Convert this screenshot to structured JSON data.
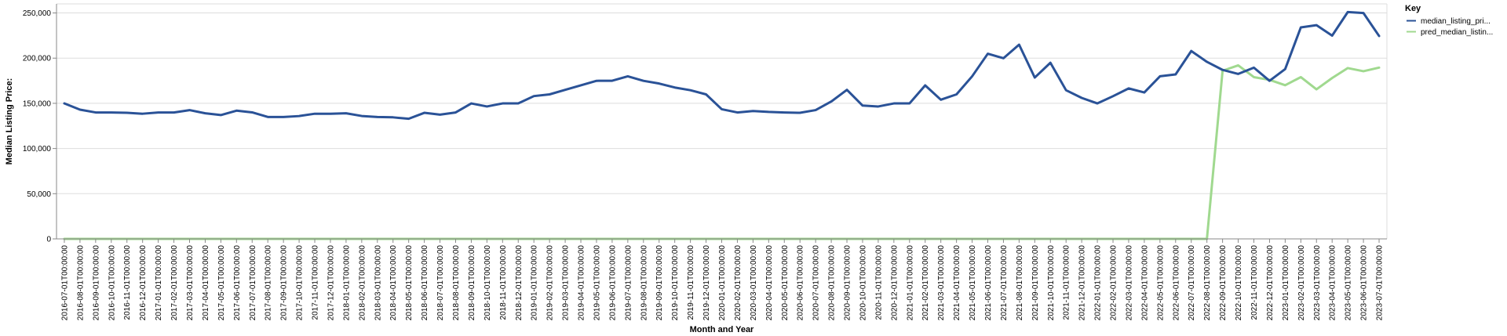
{
  "chart_data": {
    "type": "line",
    "xlabel": "Month and Year",
    "ylabel": "Median Listing Price:",
    "ylim": [
      0,
      260000
    ],
    "yticks": [
      0,
      50000,
      100000,
      150000,
      200000,
      250000
    ],
    "ytick_labels": [
      "0",
      "50,000",
      "100,000",
      "150,000",
      "200,000",
      "250,000"
    ],
    "grid": true,
    "legend": {
      "title": "Key",
      "position": "right"
    },
    "x": [
      "2016-07-01T00:00:00",
      "2016-08-01T00:00:00",
      "2016-09-01T00:00:00",
      "2016-10-01T00:00:00",
      "2016-11-01T00:00:00",
      "2016-12-01T00:00:00",
      "2017-01-01T00:00:00",
      "2017-02-01T00:00:00",
      "2017-03-01T00:00:00",
      "2017-04-01T00:00:00",
      "2017-05-01T00:00:00",
      "2017-06-01T00:00:00",
      "2017-07-01T00:00:00",
      "2017-08-01T00:00:00",
      "2017-09-01T00:00:00",
      "2017-10-01T00:00:00",
      "2017-11-01T00:00:00",
      "2017-12-01T00:00:00",
      "2018-01-01T00:00:00",
      "2018-02-01T00:00:00",
      "2018-03-01T00:00:00",
      "2018-04-01T00:00:00",
      "2018-05-01T00:00:00",
      "2018-06-01T00:00:00",
      "2018-07-01T00:00:00",
      "2018-08-01T00:00:00",
      "2018-09-01T00:00:00",
      "2018-10-01T00:00:00",
      "2018-11-01T00:00:00",
      "2018-12-01T00:00:00",
      "2019-01-01T00:00:00",
      "2019-02-01T00:00:00",
      "2019-03-01T00:00:00",
      "2019-04-01T00:00:00",
      "2019-05-01T00:00:00",
      "2019-06-01T00:00:00",
      "2019-07-01T00:00:00",
      "2019-08-01T00:00:00",
      "2019-09-01T00:00:00",
      "2019-10-01T00:00:00",
      "2019-11-01T00:00:00",
      "2019-12-01T00:00:00",
      "2020-01-01T00:00:00",
      "2020-02-01T00:00:00",
      "2020-03-01T00:00:00",
      "2020-04-01T00:00:00",
      "2020-05-01T00:00:00",
      "2020-06-01T00:00:00",
      "2020-07-01T00:00:00",
      "2020-08-01T00:00:00",
      "2020-09-01T00:00:00",
      "2020-10-01T00:00:00",
      "2020-11-01T00:00:00",
      "2020-12-01T00:00:00",
      "2021-01-01T00:00:00",
      "2021-02-01T00:00:00",
      "2021-03-01T00:00:00",
      "2021-04-01T00:00:00",
      "2021-05-01T00:00:00",
      "2021-06-01T00:00:00",
      "2021-07-01T00:00:00",
      "2021-08-01T00:00:00",
      "2021-09-01T00:00:00",
      "2021-10-01T00:00:00",
      "2021-11-01T00:00:00",
      "2021-12-01T00:00:00",
      "2022-01-01T00:00:00",
      "2022-02-01T00:00:00",
      "2022-03-01T00:00:00",
      "2022-04-01T00:00:00",
      "2022-05-01T00:00:00",
      "2022-06-01T00:00:00",
      "2022-07-01T00:00:00",
      "2022-08-01T00:00:00",
      "2022-09-01T00:00:00",
      "2022-10-01T00:00:00",
      "2022-11-01T00:00:00",
      "2022-12-01T00:00:00",
      "2023-01-01T00:00:00",
      "2023-02-01T00:00:00",
      "2023-03-01T00:00:00",
      "2023-04-01T00:00:00",
      "2023-05-01T00:00:00",
      "2023-06-01T00:00:00",
      "2023-07-01T00:00:00"
    ],
    "series": [
      {
        "name": "median_listing_pri...",
        "color": "#2a5297",
        "values": [
          149900,
          143000,
          139900,
          139900,
          139500,
          138500,
          139900,
          139900,
          142500,
          139000,
          137000,
          141900,
          140000,
          134900,
          134900,
          135900,
          138500,
          138500,
          139000,
          136000,
          134900,
          134500,
          132900,
          139500,
          137500,
          139900,
          149900,
          146500,
          149900,
          149900,
          158000,
          159900,
          164900,
          169900,
          174900,
          175000,
          179900,
          174900,
          171900,
          167500,
          164500,
          159900,
          143500,
          139900,
          141500,
          140500,
          139900,
          139500,
          142500,
          152000,
          164900,
          147500,
          146500,
          149900,
          149900,
          169900,
          154000,
          159900,
          179900,
          204900,
          199900,
          214900,
          178500,
          194900,
          164500,
          156000,
          149900,
          157900,
          166500,
          162000,
          179900,
          182000,
          207900,
          195900,
          187000,
          182500,
          189500,
          174900,
          187900,
          234000,
          236500,
          224900,
          251000,
          249900,
          224500
        ]
      },
      {
        "name": "pred_median_listin...",
        "color": "#a0d98f",
        "values": [
          0,
          0,
          0,
          0,
          0,
          0,
          0,
          0,
          0,
          0,
          0,
          0,
          0,
          0,
          0,
          0,
          0,
          0,
          0,
          0,
          0,
          0,
          0,
          0,
          0,
          0,
          0,
          0,
          0,
          0,
          0,
          0,
          0,
          0,
          0,
          0,
          0,
          0,
          0,
          0,
          0,
          0,
          0,
          0,
          0,
          0,
          0,
          0,
          0,
          0,
          0,
          0,
          0,
          0,
          0,
          0,
          0,
          0,
          0,
          0,
          0,
          0,
          0,
          0,
          0,
          0,
          0,
          0,
          0,
          0,
          0,
          0,
          0,
          0,
          186000,
          192000,
          179000,
          176000,
          170000,
          179000,
          165500,
          178000,
          189000,
          185500,
          189500
        ]
      }
    ]
  }
}
